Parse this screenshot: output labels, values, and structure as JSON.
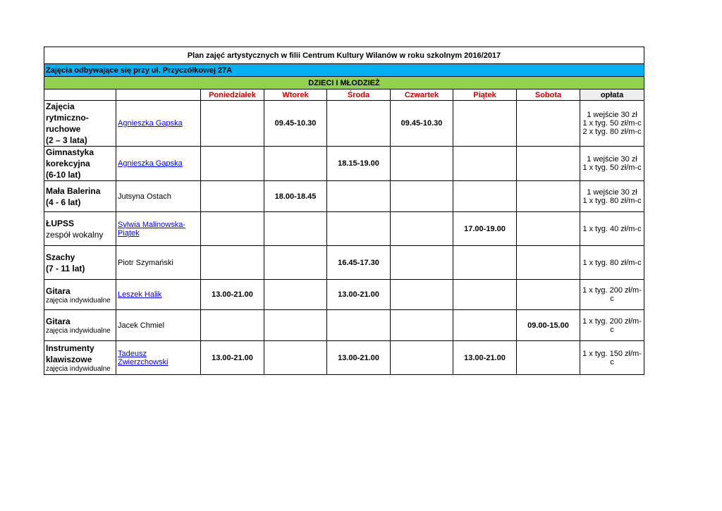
{
  "title": "Plan zajęć artystycznych w filii Centrum Kultury Wilanów w roku szkolnym 2016/2017",
  "location": "Zajęcia odbywające się przy ul. Przyczółkowej 27A",
  "section": "DZIECI I MŁODZIEŻ",
  "colors": {
    "location_bg": "#00b0f0",
    "section_bg": "#92d050",
    "day_header": "#d00000",
    "link": "#0000ff"
  },
  "days": [
    "Poniedziałek",
    "Wtorek",
    "Środa",
    "Czwartek",
    "Piątek",
    "Sobota"
  ],
  "fee_header": "opłata",
  "rows": [
    {
      "bold": [
        "Zajęcia",
        "rytmiczno-",
        "ruchowe",
        "(2 – 3 lata)"
      ],
      "plain": [],
      "small": "",
      "instructor": "Agnieszka Gapska",
      "link": true,
      "times": [
        "",
        "09.45-10.30",
        "",
        "09.45-10.30",
        "",
        ""
      ],
      "fees": [
        "1 wejście 30 zł",
        "1 x tyg. 50 zł/m-c",
        "2 x tyg. 80 zł/m-c"
      ]
    },
    {
      "bold": [
        "Gimnastyka",
        "korekcyjna",
        "(6-10 lat)"
      ],
      "plain": [],
      "small": "",
      "instructor": "Agnieszka Gapska",
      "link": true,
      "times": [
        "",
        "",
        "18.15-19.00",
        "",
        "",
        ""
      ],
      "fees": [
        "1 wejście 30 zł",
        "1 x tyg. 50 zł/m-c"
      ]
    },
    {
      "bold": [
        "Mała Balerina",
        "(4 - 6 lat)"
      ],
      "plain": [],
      "small": "",
      "instructor": "Jutsyna Ostach",
      "link": false,
      "times": [
        "",
        "18.00-18.45",
        "",
        "",
        "",
        ""
      ],
      "fees": [
        "1 wejście 30 zł",
        "1 x tyg. 80 zł/m-c"
      ]
    },
    {
      "bold": [
        "ŁUPSS"
      ],
      "plain": [
        "zespół wokalny"
      ],
      "small": "",
      "instructor": "Sylwia Malinowska-Piątek",
      "link": true,
      "times": [
        "",
        "",
        "",
        "",
        "17.00-19.00",
        ""
      ],
      "fees": [
        "1 x tyg. 40 zł/m-c"
      ]
    },
    {
      "bold": [
        "Szachy",
        "(7 - 11 lat)"
      ],
      "plain": [],
      "small": "",
      "instructor": "Piotr Szymański",
      "link": false,
      "times": [
        "",
        "",
        "16.45-17.30",
        "",
        "",
        ""
      ],
      "fees": [
        "1 x tyg. 80 zł/m-c"
      ]
    },
    {
      "bold": [
        "Gitara"
      ],
      "plain": [],
      "small": "zajęcia indywidualne",
      "instructor": "Leszek Halik",
      "link": true,
      "times": [
        "13.00-21.00",
        "",
        "13.00-21.00",
        "",
        "",
        ""
      ],
      "fees": [
        "1 x tyg. 200 zł/m-c"
      ]
    },
    {
      "bold": [
        "Gitara"
      ],
      "plain": [],
      "small": "zajęcia indywidualne",
      "instructor": "Jacek Chmiel",
      "link": false,
      "times": [
        "",
        "",
        "",
        "",
        "",
        "09.00-15.00"
      ],
      "fees": [
        "1 x tyg. 200 zł/m-c"
      ]
    },
    {
      "bold": [
        "Instrumenty",
        "klawiszowe"
      ],
      "plain": [],
      "small": "zajęcia indywidualne",
      "instructor": "Tadeusz Zwierzchowski",
      "link": true,
      "times": [
        "13.00-21.00",
        "",
        "13.00-21.00",
        "",
        "13.00-21.00",
        ""
      ],
      "fees": [
        "1 x tyg. 150 zł/m-c"
      ]
    }
  ]
}
